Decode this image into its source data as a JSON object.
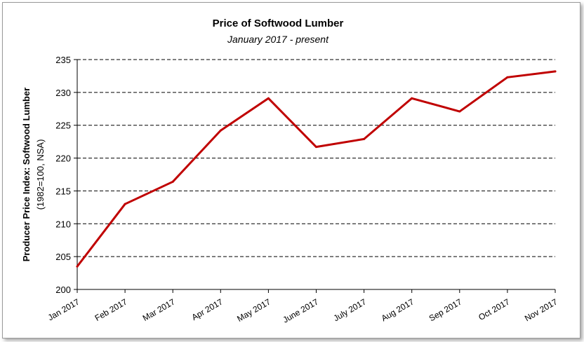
{
  "chart_data": {
    "type": "line",
    "title": "Price of Softwood Lumber",
    "subtitle": "January 2017 - present",
    "ylabel": "Producer Price Index: Softwood Lumber",
    "ylabel_note": "(1982=100, NSA)",
    "xlabel": "",
    "ylim": [
      200,
      235
    ],
    "yticks": [
      200,
      205,
      210,
      215,
      220,
      225,
      230,
      235
    ],
    "grid": "horizontal-dashed",
    "categories": [
      "Jan 2017",
      "Feb 2017",
      "Mar 2017",
      "Apr 2017",
      "May 2017",
      "June 2017",
      "July 2017",
      "Aug 2017",
      "Sep 2017",
      "Oct 2017",
      "Nov 2017"
    ],
    "series": [
      {
        "values": [
          203.5,
          213.0,
          216.4,
          224.2,
          229.1,
          221.7,
          222.9,
          229.1,
          227.1,
          232.3,
          233.2
        ],
        "color": "#c00000"
      }
    ]
  }
}
